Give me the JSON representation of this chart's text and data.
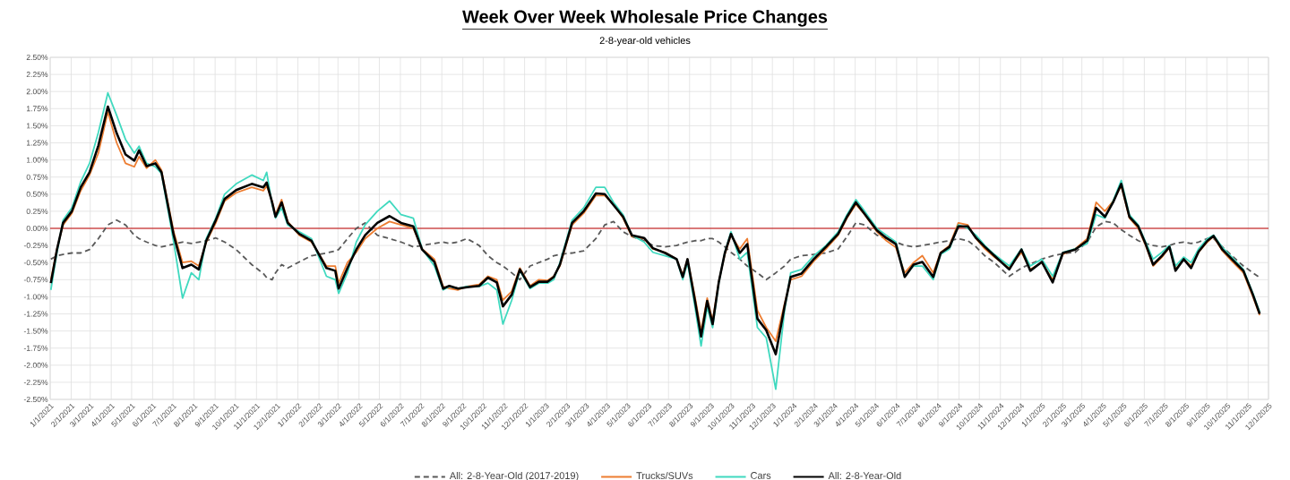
{
  "chart_data": {
    "type": "line",
    "title": "Week Over Week Wholesale Price Changes",
    "subtitle": "2-8-year-old vehicles",
    "x": [
      "2021-01-02",
      "2021-01-11",
      "2021-01-20",
      "2021-02-02",
      "2021-02-15",
      "2021-02-28",
      "2021-03-13",
      "2021-03-27",
      "2021-04-09",
      "2021-04-22",
      "2021-05-05",
      "2021-05-12",
      "2021-05-23",
      "2021-06-05",
      "2021-06-14",
      "2021-07-02",
      "2021-07-15",
      "2021-07-28",
      "2021-08-08",
      "2021-08-19",
      "2021-09-02",
      "2021-09-15",
      "2021-10-02",
      "2021-10-25",
      "2021-11-11",
      "2021-11-16",
      "2021-11-24",
      "2021-11-29",
      "2021-12-08",
      "2021-12-17",
      "2022-01-03",
      "2022-01-21",
      "2022-02-12",
      "2022-02-25",
      "2022-03-02",
      "2022-03-15",
      "2022-03-28",
      "2022-04-10",
      "2022-04-28",
      "2022-05-16",
      "2022-06-02",
      "2022-06-20",
      "2022-07-03",
      "2022-07-21",
      "2022-08-03",
      "2022-08-12",
      "2022-08-25",
      "2022-09-07",
      "2022-09-25",
      "2022-10-08",
      "2022-10-21",
      "2022-10-30",
      "2022-11-12",
      "2022-11-24",
      "2022-12-09",
      "2022-12-22",
      "2023-01-04",
      "2023-01-13",
      "2023-01-22",
      "2023-02-09",
      "2023-02-26",
      "2023-03-16",
      "2023-03-29",
      "2023-04-11",
      "2023-04-25",
      "2023-05-08",
      "2023-05-26",
      "2023-06-08",
      "2023-06-26",
      "2023-07-13",
      "2023-07-22",
      "2023-07-29",
      "2023-08-09",
      "2023-08-18",
      "2023-08-27",
      "2023-09-04",
      "2023-09-13",
      "2023-09-22",
      "2023-10-01",
      "2023-10-14",
      "2023-10-25",
      "2023-11-09",
      "2023-11-22",
      "2023-12-06",
      "2023-12-19",
      "2023-12-28",
      "2024-01-13",
      "2024-01-31",
      "2024-02-18",
      "2024-03-07",
      "2024-03-20",
      "2024-04-02",
      "2024-04-15",
      "2024-05-03",
      "2024-05-17",
      "2024-05-31",
      "2024-06-13",
      "2024-06-26",
      "2024-07-09",
      "2024-07-25",
      "2024-08-05",
      "2024-08-18",
      "2024-08-31",
      "2024-09-14",
      "2024-09-26",
      "2024-10-09",
      "2024-10-23",
      "2024-11-14",
      "2024-12-02",
      "2024-12-15",
      "2025-01-01",
      "2025-01-17",
      "2025-02-01",
      "2025-02-19",
      "2025-03-09",
      "2025-03-22",
      "2025-04-04",
      "2025-04-16",
      "2025-04-28",
      "2025-05-10",
      "2025-05-23",
      "2025-06-03",
      "2025-06-14",
      "2025-06-27",
      "2025-07-08",
      "2025-07-17",
      "2025-07-29",
      "2025-08-09",
      "2025-08-20",
      "2025-09-02",
      "2025-09-11",
      "2025-09-24",
      "2025-10-08",
      "2025-10-25",
      "2025-11-08",
      "2025-11-18"
    ],
    "series": [
      {
        "name": "All: 2-8-Year-Old (2017-2019)",
        "color": "#595959",
        "line_style": "dashed",
        "values": [
          -0.45,
          -0.4,
          -0.38,
          -0.36,
          -0.36,
          -0.31,
          -0.15,
          0.05,
          0.12,
          0.05,
          -0.1,
          -0.15,
          -0.2,
          -0.25,
          -0.27,
          -0.23,
          -0.2,
          -0.22,
          -0.2,
          -0.18,
          -0.14,
          -0.2,
          -0.31,
          -0.53,
          -0.66,
          -0.72,
          -0.75,
          -0.65,
          -0.53,
          -0.58,
          -0.49,
          -0.4,
          -0.36,
          -0.33,
          -0.31,
          -0.15,
          0.0,
          0.08,
          -0.1,
          -0.15,
          -0.2,
          -0.27,
          -0.25,
          -0.22,
          -0.2,
          -0.22,
          -0.2,
          -0.15,
          -0.25,
          -0.4,
          -0.5,
          -0.55,
          -0.65,
          -0.75,
          -0.55,
          -0.5,
          -0.45,
          -0.4,
          -0.38,
          -0.36,
          -0.33,
          -0.15,
          0.05,
          0.1,
          -0.05,
          -0.12,
          -0.18,
          -0.25,
          -0.27,
          -0.25,
          -0.22,
          -0.2,
          -0.18,
          -0.18,
          -0.15,
          -0.15,
          -0.2,
          -0.27,
          -0.35,
          -0.45,
          -0.55,
          -0.65,
          -0.75,
          -0.65,
          -0.55,
          -0.45,
          -0.4,
          -0.38,
          -0.36,
          -0.3,
          -0.12,
          0.08,
          0.05,
          -0.1,
          -0.15,
          -0.2,
          -0.25,
          -0.27,
          -0.25,
          -0.22,
          -0.2,
          -0.18,
          -0.15,
          -0.18,
          -0.27,
          -0.4,
          -0.5,
          -0.7,
          -0.58,
          -0.52,
          -0.45,
          -0.4,
          -0.37,
          -0.35,
          -0.2,
          0.02,
          0.1,
          0.08,
          -0.02,
          -0.1,
          -0.18,
          -0.22,
          -0.25,
          -0.27,
          -0.25,
          -0.22,
          -0.2,
          -0.22,
          -0.2,
          -0.15,
          -0.15,
          -0.27,
          -0.4,
          -0.55,
          -0.65,
          -0.72
        ]
      },
      {
        "name": "Trucks/SUVs",
        "color": "#ed7d31",
        "line_style": "solid",
        "values": [
          -0.75,
          -0.3,
          0.05,
          0.22,
          0.55,
          0.78,
          1.1,
          1.7,
          1.25,
          0.95,
          0.9,
          1.05,
          0.88,
          1.0,
          0.85,
          -0.05,
          -0.5,
          -0.48,
          -0.55,
          -0.2,
          0.08,
          0.4,
          0.52,
          0.6,
          0.55,
          0.62,
          0.4,
          0.2,
          0.42,
          0.1,
          -0.1,
          -0.2,
          -0.55,
          -0.55,
          -0.8,
          -0.5,
          -0.35,
          -0.15,
          0.0,
          0.1,
          0.05,
          0.0,
          -0.3,
          -0.45,
          -0.85,
          -0.88,
          -0.9,
          -0.85,
          -0.82,
          -0.7,
          -0.75,
          -1.05,
          -0.92,
          -0.58,
          -0.84,
          -0.75,
          -0.76,
          -0.7,
          -0.55,
          0.05,
          0.22,
          0.48,
          0.48,
          0.35,
          0.15,
          -0.12,
          -0.15,
          -0.3,
          -0.35,
          -0.45,
          -0.68,
          -0.45,
          -1.0,
          -1.5,
          -1.02,
          -1.35,
          -0.78,
          -0.38,
          -0.1,
          -0.3,
          -0.15,
          -1.2,
          -1.45,
          -1.65,
          -1.1,
          -0.75,
          -0.7,
          -0.48,
          -0.3,
          -0.1,
          0.15,
          0.35,
          0.2,
          -0.05,
          -0.18,
          -0.28,
          -0.65,
          -0.5,
          -0.4,
          -0.65,
          -0.35,
          -0.25,
          0.08,
          0.05,
          -0.15,
          -0.3,
          -0.42,
          -0.58,
          -0.35,
          -0.6,
          -0.5,
          -0.75,
          -0.38,
          -0.3,
          -0.15,
          0.38,
          0.25,
          0.4,
          0.62,
          0.15,
          0.0,
          -0.25,
          -0.55,
          -0.42,
          -0.28,
          -0.6,
          -0.45,
          -0.55,
          -0.35,
          -0.2,
          -0.12,
          -0.33,
          -0.48,
          -0.65,
          -1.0,
          -1.27
        ]
      },
      {
        "name": "Cars",
        "color": "#40d9bf",
        "line_style": "solid",
        "values": [
          -0.9,
          -0.35,
          0.12,
          0.3,
          0.68,
          0.95,
          1.4,
          1.98,
          1.65,
          1.3,
          1.1,
          1.2,
          0.95,
          0.9,
          0.8,
          -0.2,
          -1.02,
          -0.65,
          -0.75,
          -0.15,
          0.15,
          0.5,
          0.65,
          0.78,
          0.7,
          0.82,
          0.35,
          0.15,
          0.3,
          0.05,
          -0.05,
          -0.15,
          -0.7,
          -0.75,
          -0.95,
          -0.65,
          -0.2,
          0.05,
          0.25,
          0.4,
          0.2,
          0.15,
          -0.3,
          -0.55,
          -0.9,
          -0.85,
          -0.88,
          -0.85,
          -0.85,
          -0.8,
          -0.9,
          -1.4,
          -1.05,
          -0.62,
          -0.88,
          -0.8,
          -0.8,
          -0.75,
          -0.5,
          0.12,
          0.3,
          0.6,
          0.6,
          0.38,
          0.2,
          -0.1,
          -0.2,
          -0.35,
          -0.4,
          -0.45,
          -0.75,
          -0.5,
          -1.15,
          -1.72,
          -1.15,
          -1.45,
          -0.8,
          -0.35,
          -0.05,
          -0.45,
          -0.35,
          -1.45,
          -1.6,
          -2.35,
          -1.2,
          -0.65,
          -0.6,
          -0.4,
          -0.25,
          -0.05,
          0.2,
          0.42,
          0.25,
          0.0,
          -0.1,
          -0.2,
          -0.7,
          -0.55,
          -0.55,
          -0.75,
          -0.38,
          -0.3,
          0.05,
          0.0,
          -0.1,
          -0.25,
          -0.38,
          -0.55,
          -0.3,
          -0.55,
          -0.45,
          -0.7,
          -0.35,
          -0.3,
          -0.22,
          0.2,
          0.15,
          0.4,
          0.7,
          0.2,
          0.05,
          -0.2,
          -0.45,
          -0.35,
          -0.25,
          -0.55,
          -0.42,
          -0.5,
          -0.3,
          -0.15,
          -0.1,
          -0.28,
          -0.42,
          -0.6,
          -0.95,
          -1.22
        ]
      },
      {
        "name": "All: 2-8-Year-Old",
        "color": "#000000",
        "line_style": "solid",
        "values": [
          -0.8,
          -0.31,
          0.08,
          0.25,
          0.6,
          0.82,
          1.21,
          1.78,
          1.39,
          1.08,
          0.99,
          1.14,
          0.91,
          0.95,
          0.82,
          -0.1,
          -0.58,
          -0.53,
          -0.6,
          -0.18,
          0.12,
          0.43,
          0.56,
          0.65,
          0.6,
          0.67,
          0.38,
          0.17,
          0.38,
          0.08,
          -0.08,
          -0.18,
          -0.58,
          -0.62,
          -0.88,
          -0.58,
          -0.31,
          -0.1,
          0.08,
          0.18,
          0.08,
          0.03,
          -0.31,
          -0.49,
          -0.88,
          -0.84,
          -0.88,
          -0.86,
          -0.84,
          -0.72,
          -0.79,
          -1.14,
          -0.97,
          -0.6,
          -0.86,
          -0.78,
          -0.78,
          -0.71,
          -0.53,
          0.08,
          0.25,
          0.51,
          0.5,
          0.34,
          0.17,
          -0.1,
          -0.14,
          -0.29,
          -0.36,
          -0.45,
          -0.71,
          -0.45,
          -1.06,
          -1.58,
          -1.06,
          -1.4,
          -0.79,
          -0.36,
          -0.08,
          -0.36,
          -0.23,
          -1.32,
          -1.49,
          -1.84,
          -1.14,
          -0.71,
          -0.66,
          -0.45,
          -0.27,
          -0.08,
          0.17,
          0.38,
          0.21,
          -0.03,
          -0.14,
          -0.23,
          -0.71,
          -0.53,
          -0.49,
          -0.71,
          -0.36,
          -0.27,
          0.03,
          0.03,
          -0.14,
          -0.27,
          -0.4,
          -0.6,
          -0.31,
          -0.62,
          -0.49,
          -0.79,
          -0.36,
          -0.31,
          -0.18,
          0.3,
          0.17,
          0.38,
          0.65,
          0.17,
          0.03,
          -0.23,
          -0.53,
          -0.4,
          -0.27,
          -0.62,
          -0.45,
          -0.58,
          -0.34,
          -0.18,
          -0.11,
          -0.31,
          -0.45,
          -0.62,
          -0.97,
          -1.25
        ]
      }
    ],
    "xlim": [
      "2021-01-01",
      "2025-12-01"
    ],
    "xticks": [
      {
        "value": "2021-01-01",
        "label": "1/1/2021"
      },
      {
        "value": "2021-02-01",
        "label": "2/1/2021"
      },
      {
        "value": "2021-03-01",
        "label": "3/1/2021"
      },
      {
        "value": "2021-04-01",
        "label": "4/1/2021"
      },
      {
        "value": "2021-05-01",
        "label": "5/1/2021"
      },
      {
        "value": "2021-06-01",
        "label": "6/1/2021"
      },
      {
        "value": "2021-07-01",
        "label": "7/1/2021"
      },
      {
        "value": "2021-08-01",
        "label": "8/1/2021"
      },
      {
        "value": "2021-09-01",
        "label": "9/1/2021"
      },
      {
        "value": "2021-10-01",
        "label": "10/1/2021"
      },
      {
        "value": "2021-11-01",
        "label": "11/1/2021"
      },
      {
        "value": "2021-12-01",
        "label": "12/1/2021"
      },
      {
        "value": "2022-01-01",
        "label": "1/1/2022"
      },
      {
        "value": "2022-02-01",
        "label": "2/1/2022"
      },
      {
        "value": "2022-03-01",
        "label": "3/1/2022"
      },
      {
        "value": "2022-04-01",
        "label": "4/1/2022"
      },
      {
        "value": "2022-05-01",
        "label": "5/1/2022"
      },
      {
        "value": "2022-06-01",
        "label": "6/1/2022"
      },
      {
        "value": "2022-07-01",
        "label": "7/1/2022"
      },
      {
        "value": "2022-08-01",
        "label": "8/1/2022"
      },
      {
        "value": "2022-09-01",
        "label": "9/1/2022"
      },
      {
        "value": "2022-10-01",
        "label": "10/1/2022"
      },
      {
        "value": "2022-11-01",
        "label": "11/1/2022"
      },
      {
        "value": "2022-12-01",
        "label": "12/1/2022"
      },
      {
        "value": "2023-01-01",
        "label": "1/1/2023"
      },
      {
        "value": "2023-02-01",
        "label": "2/1/2023"
      },
      {
        "value": "2023-03-01",
        "label": "3/1/2023"
      },
      {
        "value": "2023-04-01",
        "label": "4/1/2023"
      },
      {
        "value": "2023-05-01",
        "label": "5/1/2023"
      },
      {
        "value": "2023-06-01",
        "label": "6/1/2023"
      },
      {
        "value": "2023-07-01",
        "label": "7/1/2023"
      },
      {
        "value": "2023-08-01",
        "label": "8/1/2023"
      },
      {
        "value": "2023-09-01",
        "label": "9/1/2023"
      },
      {
        "value": "2023-10-01",
        "label": "10/1/2023"
      },
      {
        "value": "2023-11-01",
        "label": "11/1/2023"
      },
      {
        "value": "2023-12-01",
        "label": "12/1/2023"
      },
      {
        "value": "2024-01-01",
        "label": "1/1/2024"
      },
      {
        "value": "2024-02-01",
        "label": "2/1/2024"
      },
      {
        "value": "2024-03-01",
        "label": "3/1/2024"
      },
      {
        "value": "2024-04-01",
        "label": "4/1/2024"
      },
      {
        "value": "2024-05-01",
        "label": "5/1/2024"
      },
      {
        "value": "2024-06-01",
        "label": "6/1/2024"
      },
      {
        "value": "2024-07-01",
        "label": "7/1/2024"
      },
      {
        "value": "2024-08-01",
        "label": "8/1/2024"
      },
      {
        "value": "2024-09-01",
        "label": "9/1/2024"
      },
      {
        "value": "2024-10-01",
        "label": "10/1/2024"
      },
      {
        "value": "2024-11-01",
        "label": "11/1/2024"
      },
      {
        "value": "2024-12-01",
        "label": "12/1/2024"
      },
      {
        "value": "2025-01-01",
        "label": "1/1/2025"
      },
      {
        "value": "2025-02-01",
        "label": "2/1/2025"
      },
      {
        "value": "2025-03-01",
        "label": "3/1/2025"
      },
      {
        "value": "2025-04-01",
        "label": "4/1/2025"
      },
      {
        "value": "2025-05-01",
        "label": "5/1/2025"
      },
      {
        "value": "2025-06-01",
        "label": "6/1/2025"
      },
      {
        "value": "2025-07-01",
        "label": "7/1/2025"
      },
      {
        "value": "2025-08-01",
        "label": "8/1/2025"
      },
      {
        "value": "2025-09-01",
        "label": "9/1/2025"
      },
      {
        "value": "2025-10-01",
        "label": "10/1/2025"
      },
      {
        "value": "2025-11-01",
        "label": "11/1/2025"
      },
      {
        "value": "2025-12-01",
        "label": "12/1/2025"
      }
    ],
    "ylim": [
      -2.5,
      2.5
    ],
    "yticks": [
      {
        "value": -2.5,
        "label": "-2.50%"
      },
      {
        "value": -2.25,
        "label": "-2.25%"
      },
      {
        "value": -2.0,
        "label": "-2.00%"
      },
      {
        "value": -1.75,
        "label": "-1.75%"
      },
      {
        "value": -1.5,
        "label": "-1.50%"
      },
      {
        "value": -1.25,
        "label": "-1.25%"
      },
      {
        "value": -1.0,
        "label": "-1.00%"
      },
      {
        "value": -0.75,
        "label": "-0.75%"
      },
      {
        "value": -0.5,
        "label": "-0.50%"
      },
      {
        "value": -0.25,
        "label": "-0.25%"
      },
      {
        "value": 0,
        "label": "0.00%"
      },
      {
        "value": 0.25,
        "label": "0.25%"
      },
      {
        "value": 0.5,
        "label": "0.50%"
      },
      {
        "value": 0.75,
        "label": "0.75%"
      },
      {
        "value": 1.0,
        "label": "1.00%"
      },
      {
        "value": 1.25,
        "label": "1.25%"
      },
      {
        "value": 1.5,
        "label": "1.50%"
      },
      {
        "value": 1.75,
        "label": "1.75%"
      },
      {
        "value": 2.0,
        "label": "2.00%"
      },
      {
        "value": 2.25,
        "label": "2.25%"
      },
      {
        "value": 2.5,
        "label": "2.50%"
      }
    ],
    "ref_lines": [
      {
        "axis": "y",
        "value": 0,
        "color": "#c00000"
      }
    ],
    "grid": true,
    "legend": "bottom"
  }
}
